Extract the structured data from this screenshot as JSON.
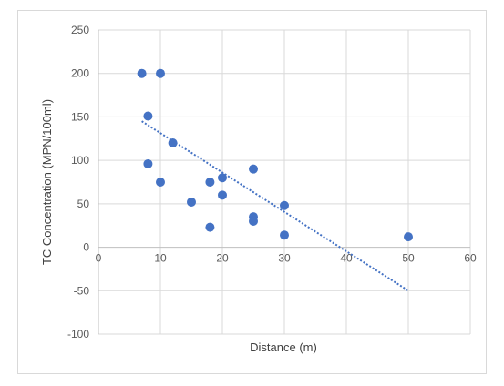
{
  "chart_data": {
    "type": "scatter",
    "xlabel": "Distance (m)",
    "ylabel": "TC Concentration (MPN/100ml)",
    "xlim": [
      0,
      60
    ],
    "ylim": [
      -100,
      250
    ],
    "x_ticks": [
      0,
      10,
      20,
      30,
      40,
      50,
      60
    ],
    "y_ticks": [
      -100,
      -50,
      0,
      50,
      100,
      150,
      200,
      250
    ],
    "grid": "vertical and horizontal major gridlines",
    "legend": "none",
    "marker_color": "#4472c4",
    "series": [
      {
        "points": [
          {
            "x": 7,
            "y": 200
          },
          {
            "x": 10,
            "y": 200
          },
          {
            "x": 8,
            "y": 151
          },
          {
            "x": 12,
            "y": 120
          },
          {
            "x": 8,
            "y": 96
          },
          {
            "x": 10,
            "y": 75
          },
          {
            "x": 18,
            "y": 75
          },
          {
            "x": 20,
            "y": 80
          },
          {
            "x": 25,
            "y": 90
          },
          {
            "x": 20,
            "y": 60
          },
          {
            "x": 15,
            "y": 52
          },
          {
            "x": 30,
            "y": 48
          },
          {
            "x": 25,
            "y": 35
          },
          {
            "x": 25,
            "y": 30
          },
          {
            "x": 18,
            "y": 23
          },
          {
            "x": 30,
            "y": 14
          },
          {
            "x": 50,
            "y": 12
          }
        ]
      }
    ],
    "trendline": {
      "type": "linear",
      "style": "dotted",
      "x_range": [
        7,
        50
      ],
      "y_at_start": 145,
      "y_at_end": -50
    }
  }
}
